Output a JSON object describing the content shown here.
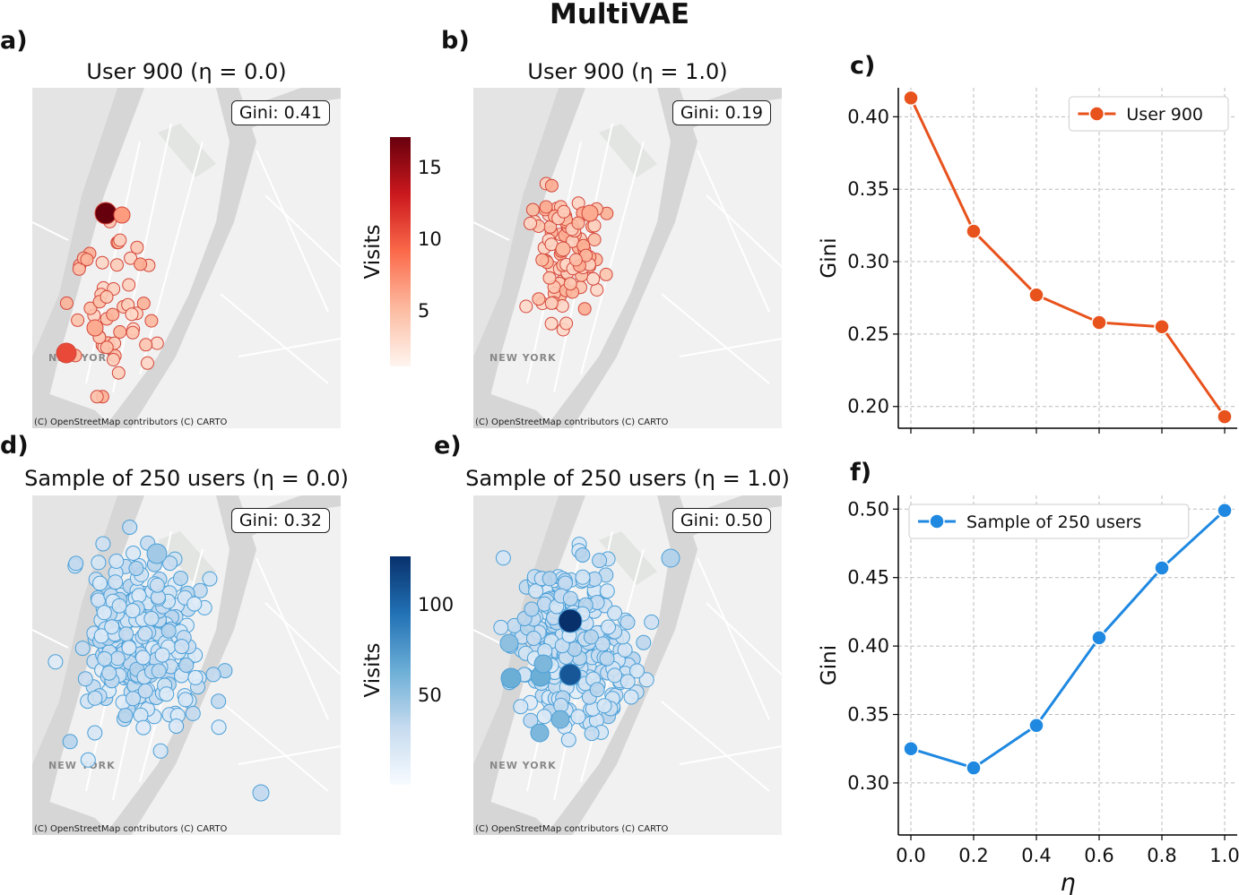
{
  "suptitle": "MultiVAE",
  "panels": {
    "a": {
      "label": "a)",
      "title": "User 900 (η = 0.0)",
      "gini": "Gini: 0.41",
      "attribution": "(C) OpenStreetMap contributors (C) CARTO"
    },
    "b": {
      "label": "b)",
      "title": "User 900 (η = 1.0)",
      "gini": "Gini: 0.19",
      "attribution": "(C) OpenStreetMap contributors (C) CARTO"
    },
    "c": {
      "label": "c)"
    },
    "d": {
      "label": "d)",
      "title": "Sample of 250 users (η = 0.0)",
      "gini": "Gini: 0.32",
      "attribution": "(C) OpenStreetMap contributors (C) CARTO"
    },
    "e": {
      "label": "e)",
      "title": "Sample of 250 users (η = 1.0)",
      "gini": "Gini: 0.50",
      "attribution": "(C) OpenStreetMap contributors (C) CARTO"
    },
    "f": {
      "label": "f)"
    }
  },
  "map_labels": {
    "city": "NEW YORK"
  },
  "colorbars": {
    "red": {
      "label": "Visits",
      "ticks": [
        "15",
        "10",
        "5"
      ],
      "range": [
        1,
        17
      ],
      "tick_values": [
        15,
        10,
        5
      ]
    },
    "blue": {
      "label": "Visits",
      "ticks": [
        "100",
        "50"
      ],
      "range": [
        1,
        125
      ],
      "tick_values": [
        100,
        50
      ]
    }
  },
  "colors": {
    "red_line": "#e8521c",
    "blue_line": "#1f88e0",
    "map_bg": "#f1f1f1",
    "water": "#d6d6d6"
  },
  "chart_data": [
    {
      "type": "line",
      "panel": "c",
      "x": [
        0.0,
        0.2,
        0.4,
        0.6,
        0.8,
        1.0
      ],
      "series": [
        {
          "name": "User 900",
          "values": [
            0.413,
            0.321,
            0.277,
            0.258,
            0.255,
            0.193
          ]
        }
      ],
      "ylabel": "Gini",
      "xlabel": "",
      "ylim": [
        0.185,
        0.42
      ],
      "yticks": [
        "0.20",
        "0.25",
        "0.30",
        "0.35",
        "0.40"
      ],
      "ytick_values": [
        0.2,
        0.25,
        0.3,
        0.35,
        0.4
      ],
      "legend": "top-right",
      "grid": true
    },
    {
      "type": "line",
      "panel": "f",
      "x": [
        0.0,
        0.2,
        0.4,
        0.6,
        0.8,
        1.0
      ],
      "series": [
        {
          "name": "Sample of 250 users",
          "values": [
            0.325,
            0.311,
            0.342,
            0.406,
            0.457,
            0.499
          ]
        }
      ],
      "ylabel": "Gini",
      "xlabel": "η",
      "ylim": [
        0.262,
        0.51
      ],
      "yticks": [
        "0.30",
        "0.35",
        "0.40",
        "0.45",
        "0.50"
      ],
      "ytick_values": [
        0.3,
        0.35,
        0.4,
        0.45,
        0.5
      ],
      "xticks": [
        "0.0",
        "0.2",
        "0.4",
        "0.6",
        "0.8",
        "1.0"
      ],
      "legend": "top-left",
      "grid": true
    }
  ]
}
